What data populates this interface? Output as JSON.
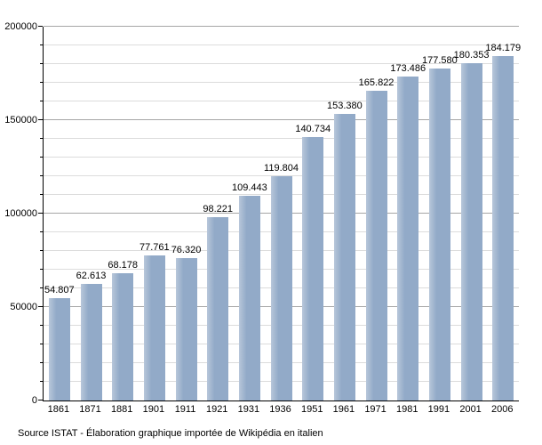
{
  "chart_data": {
    "type": "bar",
    "title": "",
    "xlabel": "",
    "ylabel": "",
    "categories": [
      "1861",
      "1871",
      "1881",
      "1901",
      "1911",
      "1921",
      "1931",
      "1936",
      "1951",
      "1961",
      "1971",
      "1981",
      "1991",
      "2001",
      "2006"
    ],
    "values": [
      54807,
      62613,
      68178,
      77761,
      76320,
      98221,
      109443,
      119804,
      140734,
      153380,
      165822,
      173486,
      177580,
      180353,
      184179
    ],
    "value_labels": [
      "54.807",
      "62.613",
      "68.178",
      "77.761",
      "76.320",
      "98.221",
      "109.443",
      "119.804",
      "140.734",
      "153.380",
      "165.822",
      "173.486",
      "177.580",
      "180.353",
      "184.179"
    ],
    "ylim": [
      0,
      200000
    ],
    "y_major_step": 50000,
    "y_minor_step": 10000,
    "y_tick_labels": [
      "0",
      "50000",
      "100000",
      "150000",
      "200000"
    ],
    "grid": "horizontal",
    "legend": "none",
    "colors": {
      "bar": "#92aac8",
      "bar_edge_highlight": "#b8c7da",
      "grid_major": "#a6a6a6",
      "grid_minor": "#dcdcdc",
      "axis": "#000000",
      "text": "#000000",
      "background": "#ffffff"
    }
  },
  "footer": {
    "source_text": "Source ISTAT - Élaboration graphique importée de Wikipédia en italien"
  }
}
